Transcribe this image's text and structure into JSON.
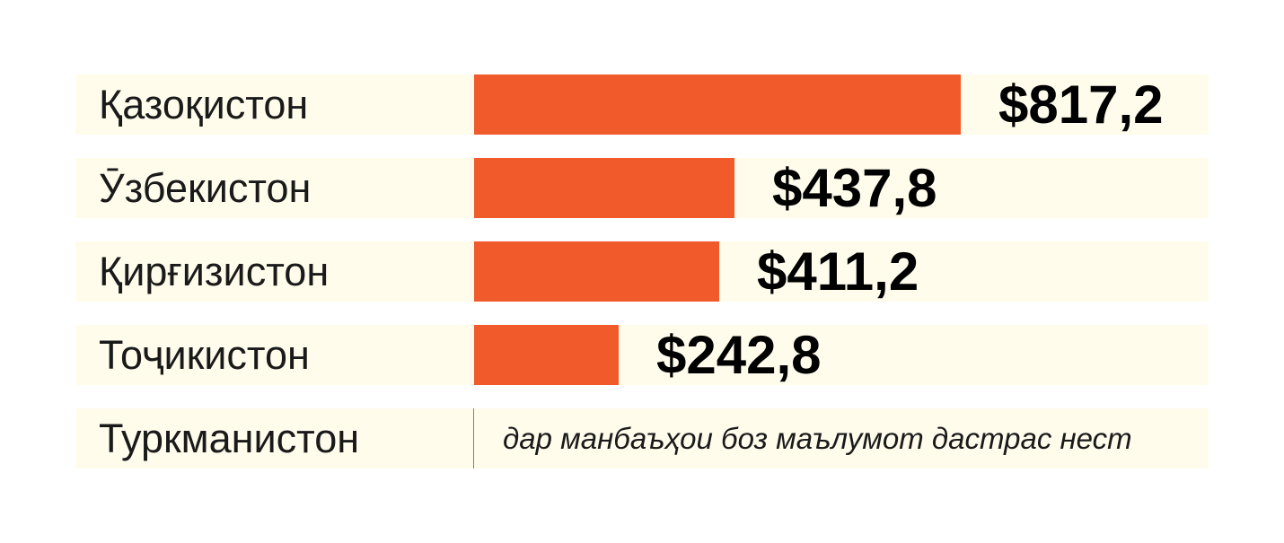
{
  "chart_data": {
    "type": "bar",
    "orientation": "horizontal",
    "categories": [
      "Қазоқистон",
      "Ӯзбекистон",
      "Қирғизистон",
      "Тоҷикистон",
      "Туркманистон"
    ],
    "values": [
      817.2,
      437.8,
      411.2,
      242.8,
      null
    ],
    "value_labels": [
      "$817,2",
      "$437,8",
      "$411,2",
      "$242,8",
      ""
    ],
    "missing_note": "дар манбаъҳои боз маълумот дастрас нест",
    "title": "",
    "xlabel": "",
    "ylabel": "",
    "xlim": [
      0,
      1000
    ],
    "grid": false,
    "legend": "none",
    "colors": {
      "bar": "#f15a2b",
      "row_background": "#fffcec",
      "text": "#1a1a1a",
      "value_text": "#000000"
    }
  }
}
